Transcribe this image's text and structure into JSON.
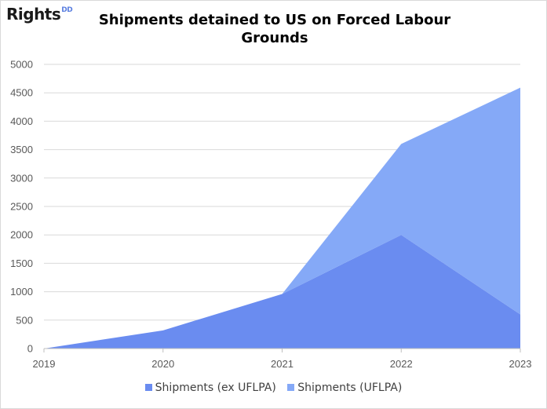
{
  "logo": {
    "text": "Rights",
    "sup": "DD"
  },
  "chart_data": {
    "type": "area",
    "stacked": true,
    "title": "Shipments detained to US on Forced Labour Grounds",
    "xlabel": "",
    "ylabel": "",
    "x": [
      "2019",
      "2020",
      "2021",
      "2022",
      "2023"
    ],
    "ylim": [
      0,
      5000
    ],
    "yticks": [
      0,
      500,
      1000,
      1500,
      2000,
      2500,
      3000,
      3500,
      4000,
      4500,
      5000
    ],
    "grid": true,
    "legend_position": "bottom",
    "series": [
      {
        "name": "Shipments (ex UFLPA)",
        "values": [
          0,
          320,
          960,
          2000,
          600
        ],
        "color": "#6a8cf0"
      },
      {
        "name": "Shipments (UFLPA)",
        "values": [
          0,
          0,
          0,
          1600,
          3990
        ],
        "color": "#85a9f7"
      }
    ]
  }
}
